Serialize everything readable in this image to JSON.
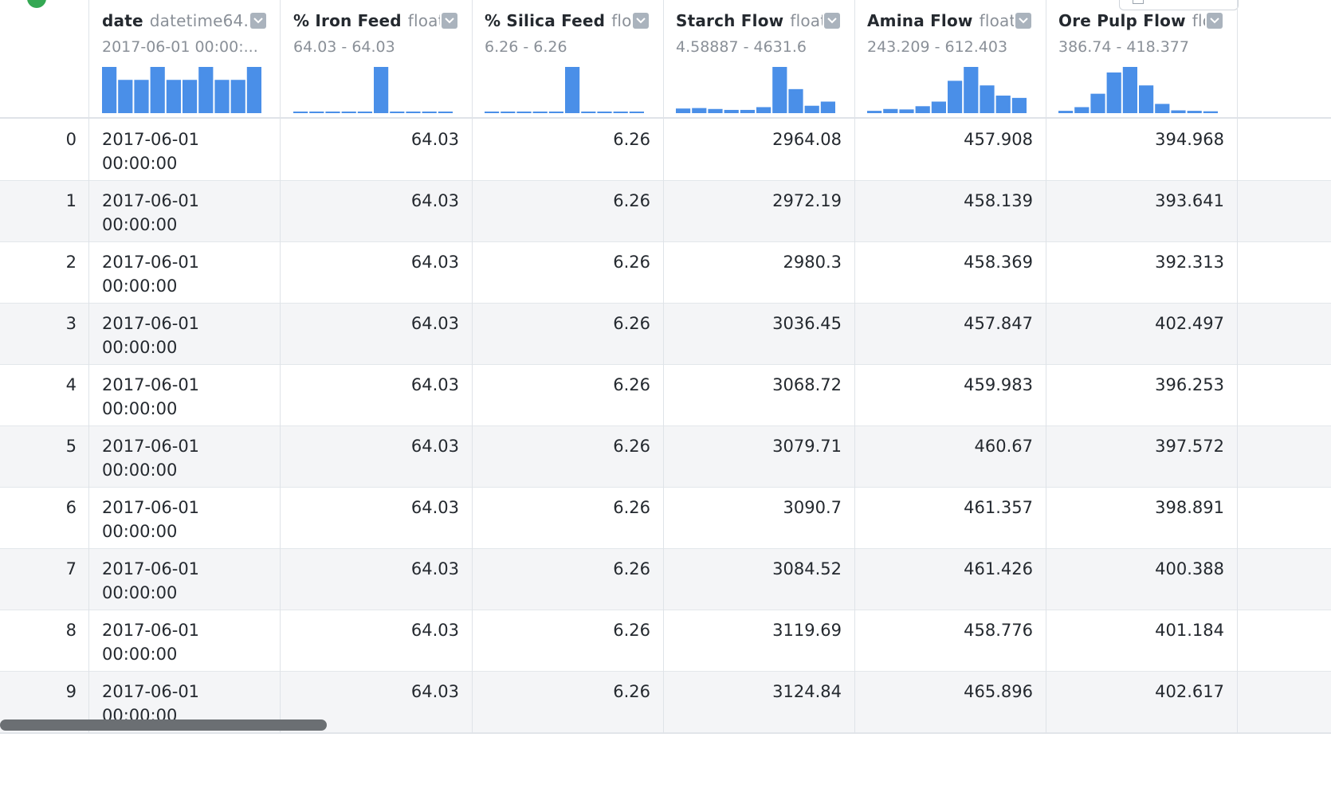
{
  "columns": [
    {
      "name": "date",
      "type": "datetime64...",
      "range": "2017-06-01 00:00:...",
      "hist": [
        1.0,
        0.72,
        0.72,
        1.0,
        0.72,
        0.72,
        1.0,
        0.72,
        0.72,
        1.0
      ]
    },
    {
      "name": "% Iron Feed",
      "type": "float...",
      "range": "64.03 - 64.03",
      "hist": [
        0.02,
        0.02,
        0.02,
        0.02,
        0.02,
        1.0,
        0.02,
        0.02,
        0.02,
        0.02
      ]
    },
    {
      "name": "% Silica Feed",
      "type": "flo...",
      "range": "6.26 - 6.26",
      "hist": [
        0.02,
        0.02,
        0.02,
        0.02,
        0.02,
        1.0,
        0.02,
        0.02,
        0.02,
        0.02
      ]
    },
    {
      "name": "Starch Flow",
      "type": "float...",
      "range": "4.58887 - 4631.6",
      "hist": [
        0.1,
        0.11,
        0.09,
        0.07,
        0.07,
        0.13,
        1.0,
        0.52,
        0.16,
        0.25
      ]
    },
    {
      "name": "Amina Flow",
      "type": "float...",
      "range": "243.209 - 612.403",
      "hist": [
        0.05,
        0.09,
        0.08,
        0.15,
        0.25,
        0.7,
        1.0,
        0.6,
        0.38,
        0.33
      ]
    },
    {
      "name": "Ore Pulp Flow",
      "type": "flo...",
      "range": "386.74 - 418.377",
      "hist": [
        0.05,
        0.13,
        0.42,
        0.88,
        1.0,
        0.6,
        0.2,
        0.06,
        0.05,
        0.04
      ]
    }
  ],
  "rows": [
    {
      "index": "0",
      "date_line1": "2017-06-01",
      "date_line2": "00:00:00",
      "iron": "64.03",
      "silica": "6.26",
      "starch": "2964.08",
      "amina": "457.908",
      "ore": "394.968"
    },
    {
      "index": "1",
      "date_line1": "2017-06-01",
      "date_line2": "00:00:00",
      "iron": "64.03",
      "silica": "6.26",
      "starch": "2972.19",
      "amina": "458.139",
      "ore": "393.641"
    },
    {
      "index": "2",
      "date_line1": "2017-06-01",
      "date_line2": "00:00:00",
      "iron": "64.03",
      "silica": "6.26",
      "starch": "2980.3",
      "amina": "458.369",
      "ore": "392.313"
    },
    {
      "index": "3",
      "date_line1": "2017-06-01",
      "date_line2": "00:00:00",
      "iron": "64.03",
      "silica": "6.26",
      "starch": "3036.45",
      "amina": "457.847",
      "ore": "402.497"
    },
    {
      "index": "4",
      "date_line1": "2017-06-01",
      "date_line2": "00:00:00",
      "iron": "64.03",
      "silica": "6.26",
      "starch": "3068.72",
      "amina": "459.983",
      "ore": "396.253"
    },
    {
      "index": "5",
      "date_line1": "2017-06-01",
      "date_line2": "00:00:00",
      "iron": "64.03",
      "silica": "6.26",
      "starch": "3079.71",
      "amina": "460.67",
      "ore": "397.572"
    },
    {
      "index": "6",
      "date_line1": "2017-06-01",
      "date_line2": "00:00:00",
      "iron": "64.03",
      "silica": "6.26",
      "starch": "3090.7",
      "amina": "461.357",
      "ore": "398.891"
    },
    {
      "index": "7",
      "date_line1": "2017-06-01",
      "date_line2": "00:00:00",
      "iron": "64.03",
      "silica": "6.26",
      "starch": "3084.52",
      "amina": "461.426",
      "ore": "400.388"
    },
    {
      "index": "8",
      "date_line1": "2017-06-01",
      "date_line2": "00:00:00",
      "iron": "64.03",
      "silica": "6.26",
      "starch": "3119.69",
      "amina": "458.776",
      "ore": "401.184"
    },
    {
      "index": "9",
      "date_line1": "2017-06-01",
      "date_line2": "00:00:00",
      "iron": "64.03",
      "silica": "6.26",
      "starch": "3124.84",
      "amina": "465.896",
      "ore": "402.617"
    }
  ],
  "colors": {
    "bar": "#4a8fe8",
    "status": "#34a853"
  },
  "icons": {
    "dropdown": "chevron-down-icon",
    "status": "status-check-icon"
  }
}
